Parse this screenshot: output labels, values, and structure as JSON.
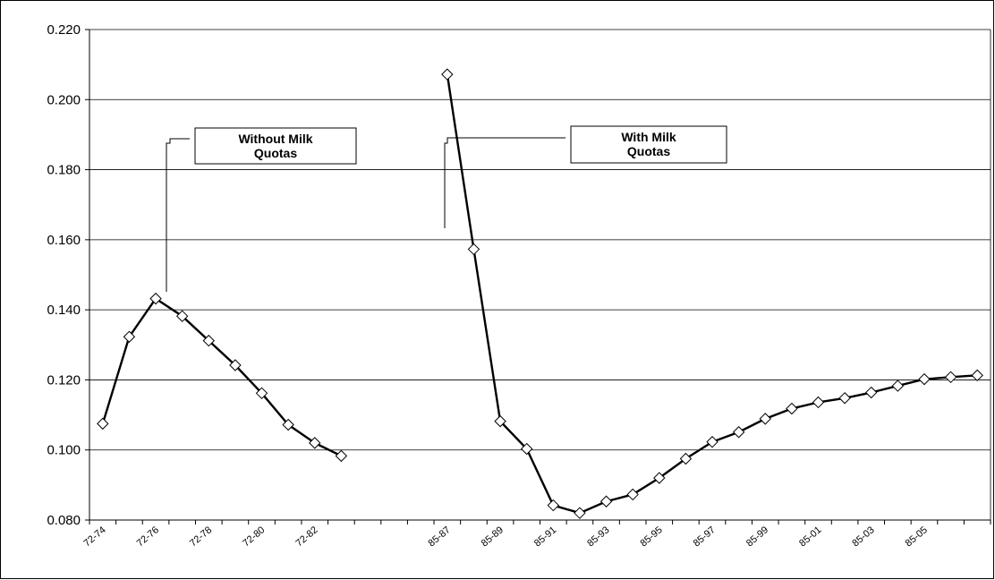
{
  "chart_data": {
    "type": "line",
    "title": "",
    "xlabel": "",
    "ylabel": "",
    "ylim": [
      0.08,
      0.22
    ],
    "y_ticks": [
      "0.080",
      "0.100",
      "0.120",
      "0.140",
      "0.160",
      "0.180",
      "0.200",
      "0.220"
    ],
    "grid": "horizontal",
    "x_categories": [
      "72-74",
      "",
      "72-76",
      "",
      "72-78",
      "",
      "72-80",
      "",
      "72-82",
      "",
      "",
      "",
      "",
      "85-87",
      "",
      "85-89",
      "",
      "85-91",
      "",
      "85-93",
      "",
      "85-95",
      "",
      "85-97",
      "",
      "85-99",
      "",
      "85-01",
      "",
      "85-03",
      "",
      "85-05",
      "",
      ""
    ],
    "series": [
      {
        "values": [
          0.1075,
          0.1323,
          0.1432,
          0.1382,
          0.1312,
          0.1242,
          0.1162,
          0.1072,
          0.102,
          0.0983,
          null,
          null,
          null,
          null,
          null,
          null,
          null,
          null,
          null,
          null,
          null,
          null,
          null,
          null,
          null,
          null,
          null,
          null,
          null,
          null,
          null,
          null,
          null,
          null
        ]
      },
      {
        "values": [
          null,
          null,
          null,
          null,
          null,
          null,
          null,
          null,
          null,
          null,
          null,
          null,
          null,
          0.2072,
          0.1573,
          0.1082,
          0.1003,
          0.0842,
          0.082,
          0.0853,
          0.0873,
          0.092,
          0.0975,
          0.1023,
          0.1051,
          0.1089,
          0.1118,
          0.1136,
          0.1148,
          0.1164,
          0.1183,
          0.1202,
          0.1208,
          0.1213
        ]
      }
    ],
    "annotations": [
      {
        "lines": [
          "Without Milk",
          "Quotas"
        ]
      },
      {
        "lines": [
          "With Milk",
          "Quotas"
        ]
      }
    ],
    "colors": {
      "line": "#000000",
      "marker_fill": "#ffffff",
      "grid": "#000000",
      "background": "#ffffff"
    }
  }
}
